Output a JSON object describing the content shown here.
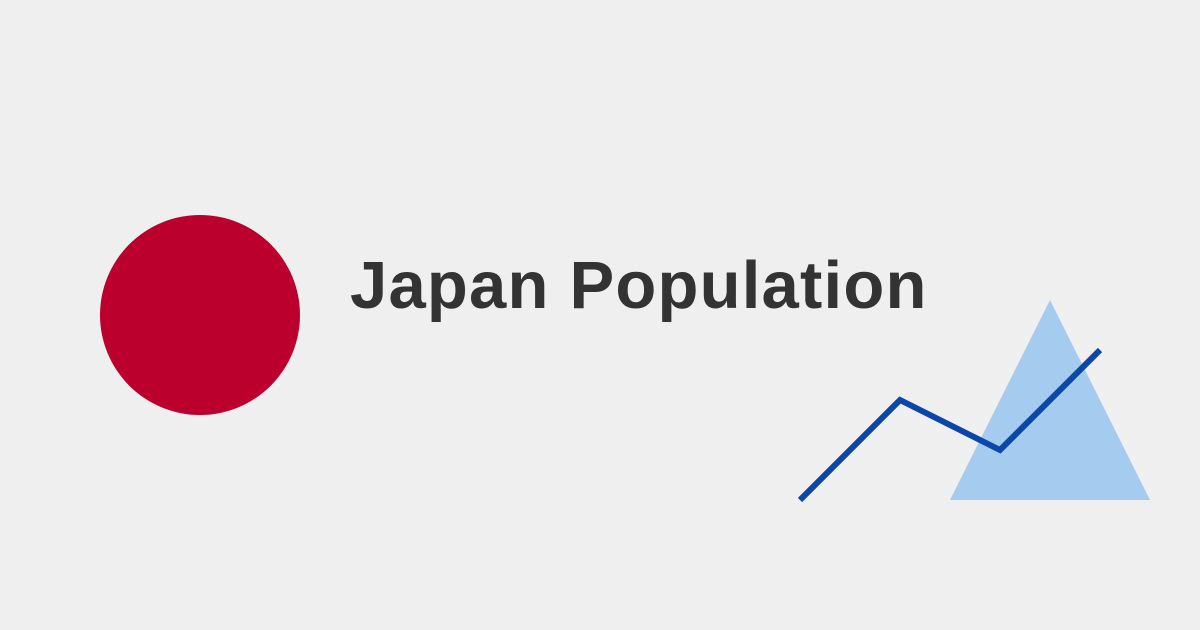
{
  "title": "Japan Population",
  "colors": {
    "background": "#f0eff0",
    "circle": "#bc002d",
    "title": "#333333",
    "line": "#0a47a8",
    "triangle": "#8fc1ee"
  },
  "icons": {
    "sun": "red-circle-icon",
    "mountain": "mountain-icon",
    "trend": "trend-line-icon"
  }
}
